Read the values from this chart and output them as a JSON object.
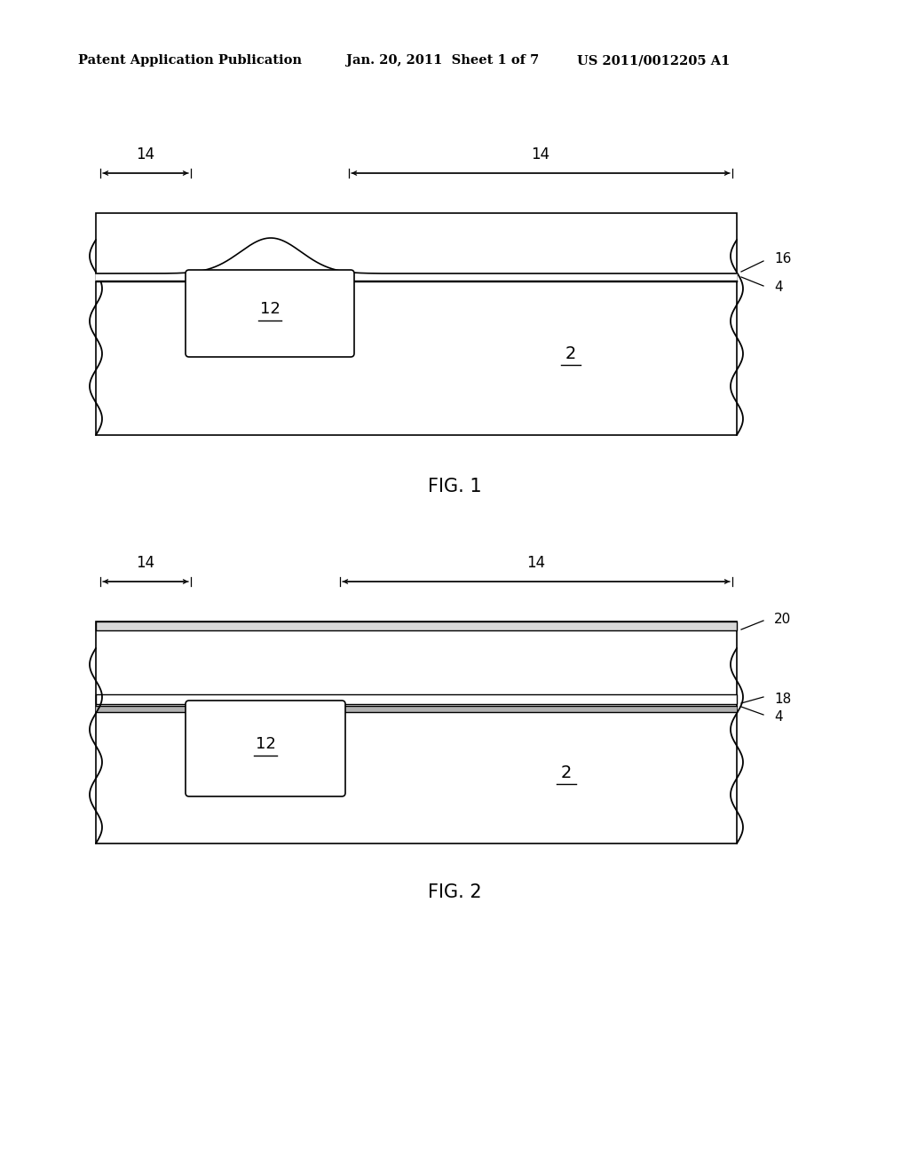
{
  "bg_color": "#ffffff",
  "header_left": "Patent Application Publication",
  "header_center": "Jan. 20, 2011  Sheet 1 of 7",
  "header_right": "US 2011/0012205 A1",
  "fig1_label": "FIG. 1",
  "fig2_label": "FIG. 2",
  "label_2": "2",
  "label_4": "4",
  "label_12": "12",
  "label_14": "14",
  "label_16": "16",
  "label_18": "18",
  "label_20": "20"
}
